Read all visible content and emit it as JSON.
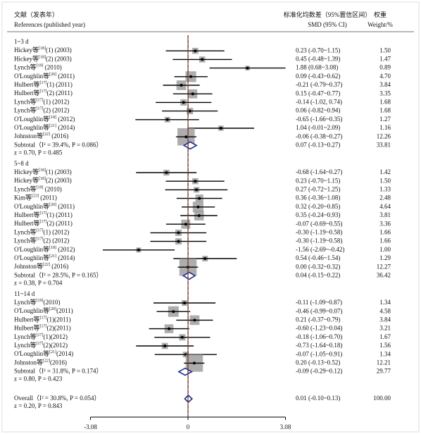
{
  "chart_data": {
    "type": "forest",
    "header": {
      "ref_cn": "文献（发表年）",
      "ref_en": "References (published year)",
      "smd_cn": "标准化均数差（95%置信区间）",
      "smd_en": "SMD (95% CI)",
      "weight_cn": "权重",
      "weight_en": "Weight/%"
    },
    "xlim": [
      -3.08,
      3.08
    ],
    "xticks": [
      -3.08,
      0,
      3.08
    ],
    "color": "#999999",
    "diamond_color": "#1f2d8a",
    "overall_line_color": "#c0392b",
    "groups": [
      {
        "name": "1~3 d",
        "studies": [
          {
            "author": "Hickey等",
            "ref": "[18]",
            "suffix": "(1) (2003)",
            "smd": 0.23,
            "lower": -0.7,
            "upper": 1.15,
            "ci_label": "0.23 (-0.70~1.15)",
            "weight": 1.5,
            "weight_label": "1.50"
          },
          {
            "author": "Hickey等",
            "ref": "[18]",
            "suffix": "(2) (2003)",
            "smd": 0.45,
            "lower": -0.48,
            "upper": 1.39,
            "ci_label": "0.45 (-0.48~1.39)",
            "weight": 1.47
          },
          {
            "author": "Lynch等",
            "ref": "[19]",
            "suffix": " (2010)",
            "smd": 1.88,
            "lower": 0.68,
            "upper": 3.08,
            "ci_label": "1.88 (0.68~3.08)",
            "weight": 0.89
          },
          {
            "author": "O'Loughlin等",
            "ref": "[20]",
            "suffix": " (2011)",
            "smd": 0.09,
            "lower": -0.43,
            "upper": 0.62,
            "ci_label": "0.09 (-0.43~0.62)",
            "weight": 4.7,
            "weight_label": "4.70"
          },
          {
            "author": "Hulbert等",
            "ref": "[17]",
            "suffix": "(1) (2011)",
            "smd": -0.21,
            "lower": -0.79,
            "upper": 0.37,
            "ci_label": "-0.21 (-0.79~0.37)",
            "weight": 3.84
          },
          {
            "author": "Hulbert等",
            "ref": "[17]",
            "suffix": "(2) (2011)",
            "smd": 0.15,
            "lower": -0.47,
            "upper": 0.77,
            "ci_label": "0.15 (-0.47~0.77)",
            "weight": 3.35
          },
          {
            "author": "Lynch等",
            "ref": "[17]",
            "suffix": "(1) (2012)",
            "smd": -0.14,
            "lower": -1.02,
            "upper": 0.74,
            "ci_label": "-0.14 (-1.02, 0.74)",
            "weight": 1.68
          },
          {
            "author": "Lynch等",
            "ref": "[17]",
            "suffix": "(2) (2012)",
            "smd": 0.06,
            "lower": -0.82,
            "upper": 0.94,
            "ci_label": "0.06 (-0.82~0.94)",
            "weight": 1.68
          },
          {
            "author": "O'Loughlin等",
            "ref": "[18]",
            "suffix": " (2012)",
            "smd": -0.65,
            "lower": -1.66,
            "upper": 0.35,
            "ci_label": "-0.65 (-1.66~0.35)",
            "weight": 1.27
          },
          {
            "author": "O'Loughlin等",
            "ref": "[21]",
            "suffix": " (2014)",
            "smd": 1.04,
            "lower": -0.01,
            "upper": 2.09,
            "ci_label": "1.04 (-0.01~2.09)",
            "weight": 1.16
          },
          {
            "author": "Johnston等",
            "ref": "[22]",
            "suffix": " (2016)",
            "smd": -0.06,
            "lower": -0.38,
            "upper": 0.27,
            "ci_label": "-0.06 (-0.38~0.27)",
            "weight": 12.26
          }
        ],
        "subtotal": {
          "label": "Subtotal（I² = 39.4%, P = 0.086）",
          "z_label": "z = 0.70, P = 0.485",
          "smd": 0.07,
          "lower": -0.13,
          "upper": 0.27,
          "ci_label": "0.07 (-0.13~0.27)",
          "weight": 33.81
        }
      },
      {
        "name": "5~8 d",
        "studies": [
          {
            "author": "Hickey等",
            "ref": "[18]",
            "suffix": "(1) (2003)",
            "smd": -0.68,
            "lower": -1.64,
            "upper": 0.27,
            "ci_label": "-0.68 (-1.64~0.27)",
            "weight": 1.42
          },
          {
            "author": "Hickey等",
            "ref": "[18]",
            "suffix": "(2) (2003)",
            "smd": 0.23,
            "lower": -0.7,
            "upper": 1.15,
            "ci_label": "0.23 (-0.70~1.15)",
            "weight": 1.5,
            "weight_label": "1.50"
          },
          {
            "author": "Lynch等",
            "ref": "[19]",
            "suffix": " (2010)",
            "smd": 0.27,
            "lower": -0.72,
            "upper": 1.25,
            "ci_label": "0.27 (-0.72~1.25)",
            "weight": 1.33
          },
          {
            "author": "Kim等",
            "ref": "[23]",
            "suffix": " (2011)",
            "smd": 0.36,
            "lower": -0.36,
            "upper": 1.08,
            "ci_label": "0.36 (-0.36~1.08)",
            "weight": 2.48
          },
          {
            "author": "O'Loughlin等",
            "ref": "[20]",
            "suffix": " (2011)",
            "smd": 0.32,
            "lower": -0.2,
            "upper": 0.85,
            "ci_label": "0.32 (-0.20~0.85)",
            "weight": 4.64
          },
          {
            "author": "Hulbert等",
            "ref": "[17]",
            "suffix": "(1) (2011)",
            "smd": 0.35,
            "lower": -0.24,
            "upper": 0.93,
            "ci_label": "0.35 (-0.24~0.93)",
            "weight": 3.81
          },
          {
            "author": "Hulbert等",
            "ref": "[17]",
            "suffix": "(2) (2011)",
            "smd": -0.07,
            "lower": -0.69,
            "upper": 0.55,
            "ci_label": "-0.07 (-0.69~0.55)",
            "weight": 3.36
          },
          {
            "author": "Lynch等",
            "ref": "[17]",
            "suffix": "(1) (2012)",
            "smd": -0.3,
            "lower": -1.19,
            "upper": 0.58,
            "ci_label": "-0.30 (-1.19~0.58)",
            "weight": 1.66
          },
          {
            "author": "Lynch等",
            "ref": "[17]",
            "suffix": "(2) (2012)",
            "smd": -0.3,
            "lower": -1.19,
            "upper": 0.58,
            "ci_label": "-0.30 (-1.19~0.58)",
            "weight": 1.66
          },
          {
            "author": "O'Loughlin等",
            "ref": "[18]",
            "suffix": " (2012)",
            "smd": -1.56,
            "lower": -2.69,
            "upper": -0.42,
            "ci_label": "-1.56 (-2.69~-0.42)",
            "weight": 1.0,
            "weight_label": "1.00"
          },
          {
            "author": "O'Loughlin等",
            "ref": "[21]",
            "suffix": " (2014)",
            "smd": 0.54,
            "lower": -0.46,
            "upper": 1.54,
            "ci_label": "0.54 (-0.46~1.54)",
            "weight": 1.29
          },
          {
            "author": "Johnston等",
            "ref": "[22]",
            "suffix": " (2016)",
            "smd": 0,
            "lower": -0.32,
            "upper": 0.32,
            "ci_label": "0.00 (-0.32~0.32)",
            "weight": 12.27
          }
        ],
        "subtotal": {
          "label": "Subtotal（I² = 28.5%, P = 0.165）",
          "z_label": "z = 0.38, P = 0.704",
          "smd": 0.04,
          "lower": -0.15,
          "upper": 0.22,
          "ci_label": "0.04 (-0.15~0.22)",
          "weight": 36.42
        }
      },
      {
        "name": "11~14 d",
        "studies": [
          {
            "author": "Lynch等",
            "ref": "[19]",
            "suffix": "(2010)",
            "smd": -0.11,
            "lower": -1.09,
            "upper": 0.87,
            "ci_label": "-0.11 (-1.09~0.87)",
            "weight": 1.34
          },
          {
            "author": "O'Loughlin等",
            "ref": "[20]",
            "suffix": "(2011)",
            "smd": -0.46,
            "lower": -0.99,
            "upper": 0.07,
            "ci_label": "-0.46 (-0.99~0.07)",
            "weight": 4.58
          },
          {
            "author": "Hulbert等",
            "ref": "[17]",
            "suffix": "(1)(2011)",
            "smd": 0.21,
            "lower": -0.37,
            "upper": 0.79,
            "ci_label": "0.21 (-0.37~0.79)",
            "weight": 3.84
          },
          {
            "author": "Hulbert等",
            "ref": "[17]",
            "suffix": "(2)(2011)",
            "smd": -0.6,
            "lower": -1.23,
            "upper": 0.04,
            "ci_label": "-0.60 (-1.23~0.04)",
            "weight": 3.21
          },
          {
            "author": "Lynch等",
            "ref": "[17]",
            "suffix": "(1)(2012)",
            "smd": -0.18,
            "lower": -1.06,
            "upper": 0.7,
            "ci_label": "-0.18 (-1.06~0.70)",
            "weight": 1.67
          },
          {
            "author": "Lynch等",
            "ref": "[17]",
            "suffix": "(2)(2012)",
            "smd": -0.73,
            "lower": -1.64,
            "upper": 0.18,
            "ci_label": "-0.73 (-1.64~0.18)",
            "weight": 1.56
          },
          {
            "author": "O'Loughlin等",
            "ref": "[21]",
            "suffix": "(2014)",
            "smd": -0.07,
            "lower": -1.05,
            "upper": 0.91,
            "ci_label": "-0.07 (-1.05~0.91)",
            "weight": 1.34
          },
          {
            "author": "Johnston等",
            "ref": "[22]",
            "suffix": "(2016)",
            "smd": 0.2,
            "lower": -0.13,
            "upper": 0.52,
            "ci_label": "0.20 (-0.13~0.52)",
            "weight": 12.21
          }
        ],
        "subtotal": {
          "label": "Subtotal（I² = 31.8%, P = 0.174）",
          "z_label": "z = 0.80, P = 0.423",
          "smd": -0.09,
          "lower": -0.29,
          "upper": 0.12,
          "ci_label": "-0.09 (-0.29~0.12)",
          "weight": 29.77
        }
      }
    ],
    "overall": {
      "label": "Overall（I² = 30.8%, P = 0.054）",
      "z_label": "z = 0.20, P = 0.843",
      "smd": 0.01,
      "lower": -0.1,
      "upper": 0.13,
      "ci_label": "0.01 (-0.10~0.13)",
      "weight": 100,
      "weight_label": "100.00"
    }
  }
}
